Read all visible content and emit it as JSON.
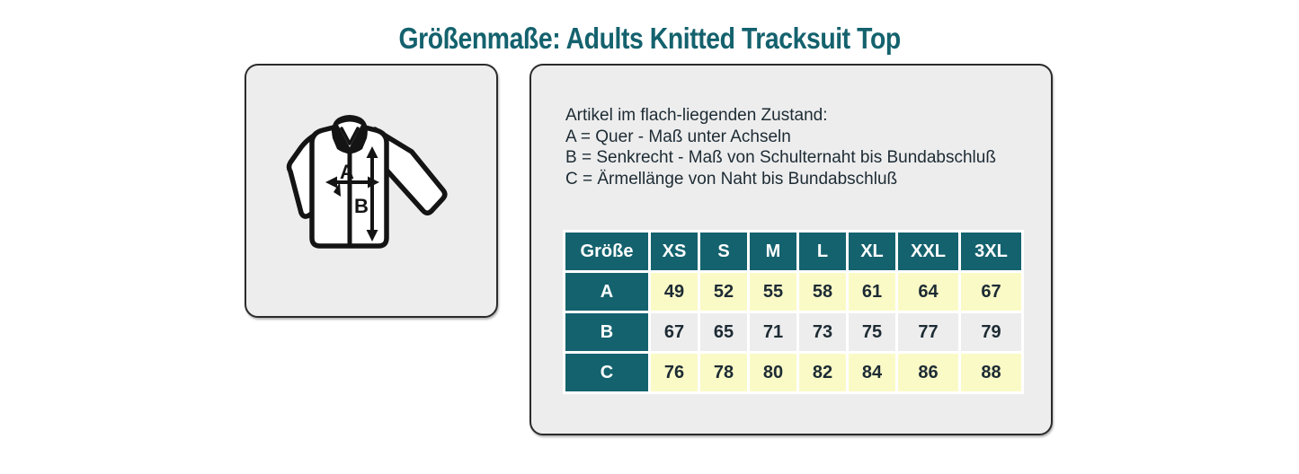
{
  "page": {
    "title": "Größenmaße: Adults Knitted Tracksuit Top"
  },
  "colors": {
    "teal": "#14626E",
    "yellow": "#FAFAC7",
    "panel_gray": "#EDEDEE",
    "text": "#1D2B33"
  },
  "diagram": {
    "label_a": "A",
    "label_b": "B"
  },
  "legend": {
    "intro": "Artikel im flach-liegenden Zustand:",
    "a": "A = Quer - Maß unter Achseln",
    "b": "B = Senkrecht - Maß von Schulternaht bis Bundabschluß",
    "c": "C = Ärmellänge von Naht bis Bundabschluß"
  },
  "chart_data": {
    "type": "table",
    "title": "Größenmaße: Adults Knitted Tracksuit Top",
    "columns": [
      "Größe",
      "XS",
      "S",
      "M",
      "L",
      "XL",
      "XXL",
      "3XL"
    ],
    "rows": [
      {
        "label": "A",
        "values": [
          49,
          52,
          55,
          58,
          61,
          64,
          67
        ]
      },
      {
        "label": "B",
        "values": [
          67,
          65,
          71,
          73,
          75,
          77,
          79
        ]
      },
      {
        "label": "C",
        "values": [
          76,
          78,
          80,
          82,
          84,
          86,
          88
        ]
      }
    ]
  }
}
